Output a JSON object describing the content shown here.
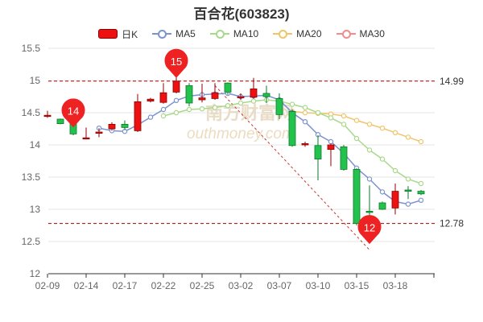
{
  "chart_data": {
    "type": "candlestick",
    "title": "百合花(603823)",
    "legend": {
      "placement": "top-center",
      "items": [
        {
          "key": "kline",
          "label": "日K",
          "color": "#ee1111"
        },
        {
          "key": "ma5",
          "label": "MA5",
          "color": "#7b93cf"
        },
        {
          "key": "ma10",
          "label": "MA10",
          "color": "#a8d98a"
        },
        {
          "key": "ma20",
          "label": "MA20",
          "color": "#f2c46a"
        },
        {
          "key": "ma30",
          "label": "MA30",
          "color": "#f08c8c"
        }
      ]
    },
    "up_color": "#ee1111",
    "down_color": "#22c24d",
    "ylim": [
      12,
      15.5
    ],
    "yticks": [
      "12",
      "12.5",
      "13",
      "13.5",
      "14",
      "14.5",
      "15",
      "15.5"
    ],
    "xtick_labels": [
      "02-09",
      "02-14",
      "02-17",
      "02-22",
      "02-25",
      "03-02",
      "03-07",
      "03-10",
      "03-15",
      "03-18"
    ],
    "grid": true,
    "candles": [
      {
        "open": 14.46,
        "close": 14.46,
        "high": 14.53,
        "low": 14.42
      },
      {
        "open": 14.4,
        "close": 14.33,
        "high": 14.41,
        "low": 14.32
      },
      {
        "open": 14.35,
        "close": 14.17,
        "high": 14.37,
        "low": 14.15
      },
      {
        "open": 14.1,
        "close": 14.11,
        "high": 14.27,
        "low": 14.09
      },
      {
        "open": 14.18,
        "close": 14.2,
        "high": 14.26,
        "low": 14.12
      },
      {
        "open": 14.25,
        "close": 14.32,
        "high": 14.35,
        "low": 14.22
      },
      {
        "open": 14.32,
        "close": 14.27,
        "high": 14.38,
        "low": 14.23
      },
      {
        "open": 14.22,
        "close": 14.67,
        "high": 14.79,
        "low": 14.2
      },
      {
        "open": 14.68,
        "close": 14.71,
        "high": 14.73,
        "low": 14.66
      },
      {
        "open": 14.66,
        "close": 14.81,
        "high": 14.96,
        "low": 14.64
      },
      {
        "open": 14.82,
        "close": 14.99,
        "high": 15.05,
        "low": 14.8
      },
      {
        "open": 14.92,
        "close": 14.65,
        "high": 14.96,
        "low": 14.6
      },
      {
        "open": 14.7,
        "close": 14.73,
        "high": 14.95,
        "low": 14.66
      },
      {
        "open": 14.72,
        "close": 14.81,
        "high": 14.96,
        "low": 14.7
      },
      {
        "open": 14.96,
        "close": 14.82,
        "high": 14.97,
        "low": 14.78
      },
      {
        "open": 14.74,
        "close": 14.75,
        "high": 14.8,
        "low": 14.7
      },
      {
        "open": 14.74,
        "close": 14.87,
        "high": 15.04,
        "low": 14.72
      },
      {
        "open": 14.8,
        "close": 14.75,
        "high": 14.92,
        "low": 14.65
      },
      {
        "open": 14.72,
        "close": 14.47,
        "high": 14.8,
        "low": 14.4
      },
      {
        "open": 14.52,
        "close": 13.99,
        "high": 14.55,
        "low": 13.97
      },
      {
        "open": 14.0,
        "close": 14.02,
        "high": 14.05,
        "low": 13.97
      },
      {
        "open": 13.99,
        "close": 13.78,
        "high": 14.15,
        "low": 13.45
      },
      {
        "open": 13.93,
        "close": 14.0,
        "high": 14.02,
        "low": 13.67
      },
      {
        "open": 13.97,
        "close": 13.62,
        "high": 14.0,
        "low": 13.6
      },
      {
        "open": 13.62,
        "close": 12.78,
        "high": 13.64,
        "low": 12.75
      },
      {
        "open": 12.97,
        "close": 12.95,
        "high": 13.37,
        "low": 12.47
      },
      {
        "open": 13.1,
        "close": 13.0,
        "high": 13.12,
        "low": 12.99
      },
      {
        "open": 13.02,
        "close": 13.28,
        "high": 13.4,
        "low": 12.92
      },
      {
        "open": 13.3,
        "close": 13.28,
        "high": 13.36,
        "low": 13.16
      },
      {
        "open": 13.28,
        "close": 13.24,
        "high": 13.3,
        "low": 13.22
      }
    ],
    "ma5": [
      null,
      null,
      null,
      null,
      14.26,
      14.22,
      14.21,
      14.31,
      14.43,
      14.55,
      14.69,
      14.76,
      14.78,
      14.79,
      14.8,
      14.75,
      14.76,
      14.77,
      14.7,
      14.5,
      14.36,
      14.16,
      14.05,
      13.87,
      13.64,
      13.47,
      13.27,
      13.12,
      13.08,
      13.14
    ],
    "ma10": [
      null,
      null,
      null,
      null,
      null,
      null,
      null,
      null,
      null,
      14.45,
      14.5,
      14.55,
      14.56,
      14.58,
      14.61,
      14.65,
      14.68,
      14.7,
      14.68,
      14.63,
      14.58,
      14.5,
      14.42,
      14.32,
      14.1,
      13.92,
      13.78,
      13.6,
      13.47,
      13.4
    ],
    "ma20": [
      null,
      null,
      null,
      null,
      null,
      null,
      null,
      null,
      null,
      null,
      null,
      null,
      null,
      null,
      null,
      null,
      null,
      null,
      null,
      14.52,
      14.5,
      14.49,
      14.48,
      14.45,
      14.38,
      14.32,
      14.26,
      14.19,
      14.12,
      14.05
    ],
    "ma30": [],
    "reference_lines": [
      {
        "value": 14.99,
        "label": "14.99"
      },
      {
        "value": 12.78,
        "label": "12.78"
      }
    ],
    "markers": [
      {
        "label": "14",
        "index": 2,
        "value": 14.28
      },
      {
        "label": "15",
        "index": 10,
        "value": 15.05
      },
      {
        "label": "12",
        "index": 25,
        "value": 12.47
      }
    ],
    "trend_line": {
      "from_index": 13,
      "from_value": 14.92,
      "to_index": 25,
      "to_value": 12.37,
      "color": "#cc3333"
    },
    "watermark": {
      "text_cn": "南方财富网",
      "text_en": "outhmoney.com"
    }
  }
}
